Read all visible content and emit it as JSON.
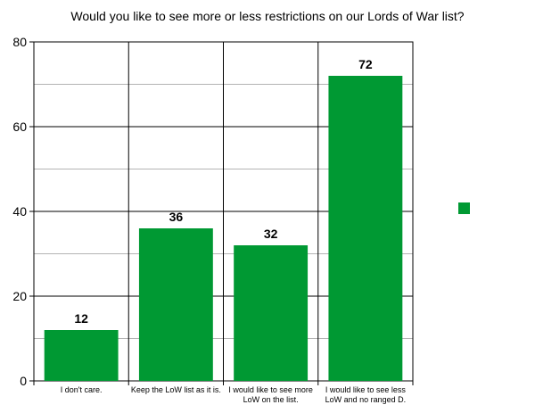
{
  "chart_data": {
    "type": "bar",
    "title": "Would you like to see more or less restrictions on our Lords of War list?",
    "categories": [
      "I don't care.",
      "Keep the LoW list as it is.",
      "I would like to see more LoW on the list.",
      "I would like to see less LoW and no ranged D."
    ],
    "values": [
      12,
      36,
      32,
      72
    ],
    "ylim": [
      0,
      80
    ],
    "yticks": [
      0,
      20,
      40,
      60,
      80
    ],
    "minor_grid_step": 10,
    "grid": true,
    "legend": {
      "placement": "right",
      "entries": [
        ""
      ]
    },
    "colors": {
      "bar": "#009933",
      "axis": "#000000",
      "grid": "#b3b3b3"
    }
  }
}
